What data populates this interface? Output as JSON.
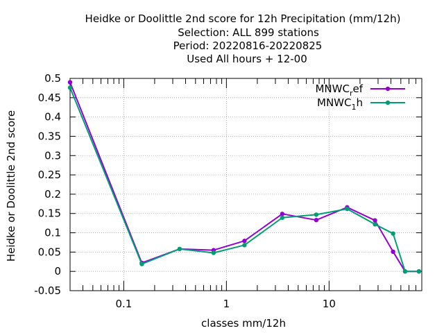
{
  "chart_data": {
    "type": "line",
    "title_lines": [
      "Heidke or Doolittle 2nd score  for 12h Precipitation (mm/12h)",
      "Selection: ALL    899 stations",
      "Period: 20220816-20220825",
      "Used  All hours  + 12-00"
    ],
    "xlabel": "classes mm/12h",
    "ylabel": "Heidke or Doolittle 2nd score",
    "x_scale": "log",
    "xlim": [
      0.03,
      80
    ],
    "ylim": [
      -0.05,
      0.5
    ],
    "x_ticks": [
      {
        "value": 0.1,
        "label": "0.1"
      },
      {
        "value": 1,
        "label": "1"
      },
      {
        "value": 10,
        "label": "10"
      }
    ],
    "y_ticks": [
      {
        "value": 0.5,
        "label": "0.5"
      },
      {
        "value": 0.45,
        "label": "0.45"
      },
      {
        "value": 0.4,
        "label": "0.4"
      },
      {
        "value": 0.35,
        "label": "0.35"
      },
      {
        "value": 0.3,
        "label": "0.3"
      },
      {
        "value": 0.25,
        "label": "0.25"
      },
      {
        "value": 0.2,
        "label": "0.2"
      },
      {
        "value": 0.15,
        "label": "0.15"
      },
      {
        "value": 0.1,
        "label": "0.1"
      },
      {
        "value": 0.05,
        "label": "0.05"
      },
      {
        "value": 0,
        "label": "0"
      },
      {
        "value": -0.05,
        "label": "-0.05"
      }
    ],
    "grid": true,
    "legend_position": "top-right",
    "series": [
      {
        "name_main": "MNWC",
        "name_sub": "r",
        "name_rest": "ef",
        "color": "#9400d3",
        "x": [
          0.03,
          0.15,
          0.35,
          0.75,
          1.5,
          3.5,
          7.5,
          15,
          28,
          42,
          55,
          75
        ],
        "y": [
          0.49,
          0.022,
          0.058,
          0.055,
          0.079,
          0.149,
          0.133,
          0.166,
          0.132,
          0.051,
          0.0,
          0.0
        ]
      },
      {
        "name_main": "MNWC",
        "name_sub": "1",
        "name_rest": "h",
        "color": "#009e73",
        "x": [
          0.03,
          0.15,
          0.35,
          0.75,
          1.5,
          3.5,
          7.5,
          15,
          28,
          42,
          55,
          75
        ],
        "y": [
          0.476,
          0.019,
          0.058,
          0.048,
          0.068,
          0.139,
          0.147,
          0.162,
          0.122,
          0.098,
          0.0,
          0.0
        ]
      }
    ]
  }
}
